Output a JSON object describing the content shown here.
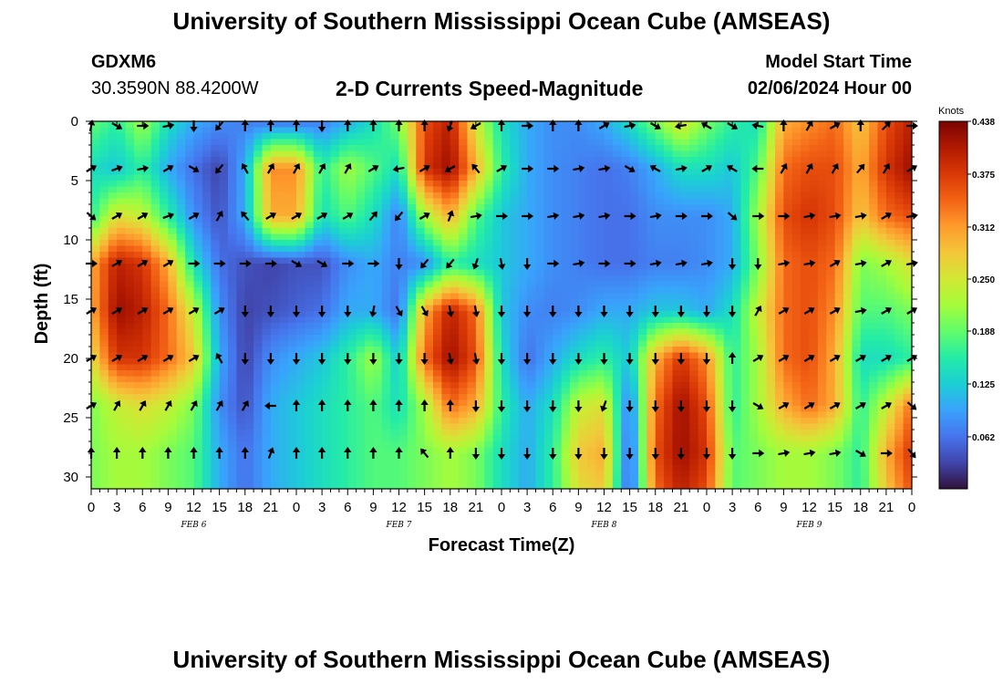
{
  "header": {
    "title": "University of Southern Mississippi Ocean Cube (AMSEAS)",
    "station": "GDXM6",
    "coords": "30.3590N  88.4200W",
    "subtitle": "2-D Currents Speed-Magnitude",
    "start_label": "Model Start Time",
    "start_value": "02/06/2024 Hour 00"
  },
  "footer": {
    "title": "University of Southern Mississippi Ocean Cube (AMSEAS)"
  },
  "chart_data": {
    "type": "heatmap",
    "title": "2-D Currents Speed-Magnitude",
    "xlabel": "Forecast Time(Z)",
    "ylabel": "Depth (ft)",
    "x_tick_labels": [
      "0",
      "3",
      "6",
      "9",
      "12",
      "15",
      "18",
      "21",
      "0",
      "3",
      "6",
      "9",
      "12",
      "15",
      "18",
      "21",
      "0",
      "3",
      "6",
      "9",
      "12",
      "15",
      "18",
      "21",
      "0",
      "3",
      "6",
      "9",
      "12",
      "15",
      "18",
      "21",
      "0"
    ],
    "x_range_hours": [
      0,
      96
    ],
    "day_labels": [
      {
        "label": "FEB 6",
        "hour": 12
      },
      {
        "label": "FEB 7",
        "hour": 36
      },
      {
        "label": "FEB 8",
        "hour": 60
      },
      {
        "label": "FEB 9",
        "hour": 84
      }
    ],
    "y_ticks": [
      0,
      5,
      10,
      15,
      20,
      25,
      30
    ],
    "y_tick_labels": [
      "0",
      "5",
      "10",
      "15",
      "20",
      "25",
      "30"
    ],
    "y_range": [
      0,
      31
    ],
    "y_inverted": true,
    "colorbar": {
      "unit": "Knots",
      "ticks": [
        "0.438",
        "0.375",
        "0.312",
        "0.250",
        "0.188",
        "0.125",
        "0.062"
      ],
      "tick_values": [
        0.438,
        0.375,
        0.312,
        0.25,
        0.188,
        0.125,
        0.062
      ],
      "range": [
        0,
        0.438
      ],
      "colors": [
        "#30123b",
        "#4145ab",
        "#4675ed",
        "#39a2fc",
        "#1bcfd4",
        "#24eca6",
        "#61fc6c",
        "#a4fc3b",
        "#d1e834",
        "#f3c63a",
        "#fe9b2d",
        "#f36315",
        "#d93806",
        "#b11901",
        "#7a0402"
      ]
    },
    "field": {
      "hours": [
        0,
        3,
        6,
        9,
        12,
        15,
        18,
        21,
        24,
        27,
        30,
        33,
        36,
        39,
        42,
        45,
        48,
        51,
        54,
        57,
        60,
        63,
        66,
        69,
        72,
        75,
        78,
        81,
        84,
        87,
        90,
        93,
        96
      ],
      "depths": [
        0,
        4,
        8,
        12,
        16,
        20,
        24,
        28,
        31
      ],
      "speed": [
        [
          0.19,
          0.16,
          0.22,
          0.14,
          0.1,
          0.08,
          0.07,
          0.06,
          0.06,
          0.07,
          0.1,
          0.14,
          0.2,
          0.36,
          0.4,
          0.25,
          0.14,
          0.1,
          0.08,
          0.08,
          0.1,
          0.14,
          0.2,
          0.26,
          0.2,
          0.16,
          0.14,
          0.3,
          0.32,
          0.34,
          0.28,
          0.36,
          0.4
        ],
        [
          0.14,
          0.12,
          0.16,
          0.1,
          0.06,
          0.03,
          0.1,
          0.32,
          0.32,
          0.16,
          0.22,
          0.18,
          0.14,
          0.38,
          0.42,
          0.3,
          0.16,
          0.1,
          0.08,
          0.07,
          0.06,
          0.07,
          0.1,
          0.14,
          0.14,
          0.12,
          0.18,
          0.34,
          0.36,
          0.36,
          0.3,
          0.38,
          0.42
        ],
        [
          0.16,
          0.26,
          0.24,
          0.16,
          0.08,
          0.04,
          0.1,
          0.3,
          0.3,
          0.14,
          0.18,
          0.14,
          0.07,
          0.22,
          0.3,
          0.18,
          0.12,
          0.1,
          0.08,
          0.07,
          0.06,
          0.06,
          0.08,
          0.08,
          0.08,
          0.1,
          0.22,
          0.36,
          0.38,
          0.36,
          0.28,
          0.34,
          0.36
        ],
        [
          0.3,
          0.4,
          0.38,
          0.3,
          0.14,
          0.06,
          0.04,
          0.03,
          0.04,
          0.04,
          0.08,
          0.1,
          0.07,
          0.08,
          0.16,
          0.14,
          0.12,
          0.1,
          0.08,
          0.07,
          0.06,
          0.06,
          0.07,
          0.07,
          0.08,
          0.1,
          0.2,
          0.34,
          0.36,
          0.34,
          0.2,
          0.22,
          0.26
        ],
        [
          0.3,
          0.42,
          0.4,
          0.34,
          0.24,
          0.08,
          0.03,
          0.04,
          0.05,
          0.06,
          0.1,
          0.1,
          0.06,
          0.3,
          0.4,
          0.34,
          0.12,
          0.08,
          0.07,
          0.08,
          0.1,
          0.1,
          0.12,
          0.12,
          0.1,
          0.14,
          0.24,
          0.34,
          0.36,
          0.32,
          0.18,
          0.18,
          0.2
        ],
        [
          0.26,
          0.38,
          0.38,
          0.34,
          0.28,
          0.1,
          0.03,
          0.08,
          0.1,
          0.12,
          0.16,
          0.22,
          0.12,
          0.34,
          0.42,
          0.36,
          0.14,
          0.06,
          0.1,
          0.14,
          0.16,
          0.12,
          0.3,
          0.38,
          0.32,
          0.16,
          0.22,
          0.34,
          0.36,
          0.3,
          0.14,
          0.14,
          0.16
        ],
        [
          0.2,
          0.24,
          0.26,
          0.24,
          0.2,
          0.08,
          0.04,
          0.1,
          0.12,
          0.14,
          0.16,
          0.18,
          0.14,
          0.22,
          0.34,
          0.3,
          0.16,
          0.1,
          0.14,
          0.24,
          0.26,
          0.06,
          0.34,
          0.42,
          0.36,
          0.16,
          0.22,
          0.3,
          0.34,
          0.3,
          0.16,
          0.24,
          0.34
        ],
        [
          0.2,
          0.22,
          0.22,
          0.2,
          0.18,
          0.1,
          0.06,
          0.1,
          0.12,
          0.14,
          0.16,
          0.18,
          0.18,
          0.2,
          0.22,
          0.2,
          0.14,
          0.1,
          0.16,
          0.28,
          0.3,
          0.04,
          0.36,
          0.42,
          0.38,
          0.18,
          0.2,
          0.22,
          0.22,
          0.2,
          0.16,
          0.3,
          0.38
        ],
        [
          0.2,
          0.22,
          0.22,
          0.2,
          0.18,
          0.1,
          0.06,
          0.1,
          0.12,
          0.14,
          0.16,
          0.18,
          0.18,
          0.2,
          0.22,
          0.2,
          0.14,
          0.1,
          0.16,
          0.26,
          0.28,
          0.04,
          0.34,
          0.4,
          0.36,
          0.18,
          0.2,
          0.22,
          0.22,
          0.2,
          0.16,
          0.28,
          0.36
        ]
      ]
    },
    "vectors": {
      "hours": [
        0,
        3,
        6,
        9,
        12,
        15,
        18,
        21,
        24,
        27,
        30,
        33,
        36,
        39,
        42,
        45,
        48,
        51,
        54,
        57,
        60,
        63,
        66,
        69,
        72,
        75,
        78,
        81,
        84,
        87,
        90,
        93,
        96
      ],
      "depths": [
        0,
        4,
        8,
        12,
        16,
        20,
        24,
        28
      ],
      "directions_deg": [
        [
          10,
          120,
          90,
          80,
          180,
          220,
          0,
          0,
          0,
          180,
          0,
          0,
          0,
          0,
          200,
          240,
          0,
          90,
          0,
          0,
          60,
          80,
          120,
          260,
          300,
          120,
          280,
          0,
          30,
          60,
          0,
          45,
          90
        ],
        [
          60,
          70,
          80,
          60,
          120,
          220,
          330,
          30,
          30,
          30,
          30,
          60,
          260,
          60,
          240,
          320,
          60,
          90,
          90,
          80,
          80,
          120,
          300,
          80,
          60,
          300,
          270,
          30,
          30,
          30,
          40,
          30,
          60
        ],
        [
          130,
          60,
          60,
          70,
          60,
          30,
          320,
          60,
          60,
          60,
          60,
          40,
          220,
          60,
          20,
          80,
          90,
          90,
          80,
          80,
          80,
          90,
          80,
          90,
          90,
          130,
          90,
          90,
          80,
          80,
          80,
          60,
          80
        ],
        [
          90,
          60,
          60,
          60,
          90,
          90,
          90,
          90,
          120,
          120,
          90,
          90,
          180,
          220,
          220,
          200,
          170,
          180,
          90,
          80,
          90,
          90,
          80,
          80,
          80,
          180,
          180,
          80,
          80,
          60,
          80,
          60,
          80
        ],
        [
          60,
          60,
          60,
          60,
          60,
          60,
          180,
          180,
          180,
          180,
          180,
          190,
          150,
          150,
          170,
          170,
          180,
          180,
          180,
          180,
          180,
          180,
          180,
          180,
          180,
          180,
          30,
          60,
          60,
          60,
          80,
          60,
          60
        ],
        [
          60,
          60,
          60,
          60,
          60,
          330,
          180,
          180,
          180,
          180,
          180,
          180,
          180,
          180,
          170,
          170,
          180,
          180,
          180,
          180,
          180,
          180,
          180,
          180,
          180,
          0,
          60,
          60,
          60,
          60,
          60,
          60,
          60
        ],
        [
          60,
          30,
          30,
          30,
          30,
          30,
          30,
          270,
          0,
          0,
          0,
          0,
          0,
          0,
          0,
          180,
          180,
          180,
          180,
          180,
          200,
          180,
          180,
          180,
          180,
          180,
          120,
          60,
          60,
          60,
          60,
          60,
          130
        ],
        [
          0,
          0,
          0,
          0,
          0,
          0,
          0,
          20,
          0,
          0,
          0,
          0,
          0,
          320,
          0,
          180,
          180,
          180,
          180,
          180,
          180,
          180,
          180,
          180,
          180,
          180,
          90,
          80,
          80,
          80,
          120,
          90,
          140
        ]
      ]
    }
  }
}
